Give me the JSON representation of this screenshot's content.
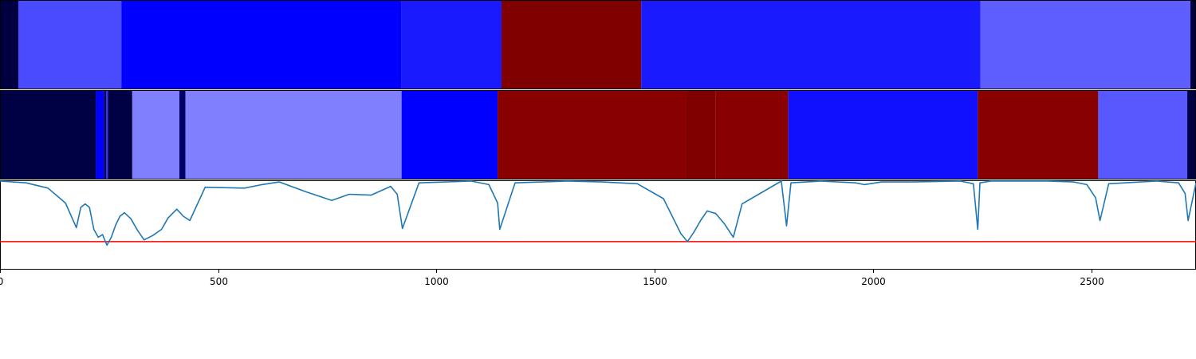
{
  "chart_data": [
    {
      "type": "heatmap",
      "name": "segmentation-band-1",
      "x_range": [
        0,
        2740
      ],
      "segments": [
        {
          "start": 0,
          "end": 42,
          "color": "#000040"
        },
        {
          "start": 42,
          "end": 278,
          "color": "#4a4aff"
        },
        {
          "start": 278,
          "end": 920,
          "color": "#0000ff"
        },
        {
          "start": 920,
          "end": 1149,
          "color": "#1a1aff"
        },
        {
          "start": 1149,
          "end": 1469,
          "color": "#800000"
        },
        {
          "start": 1469,
          "end": 2246,
          "color": "#1a1aff"
        },
        {
          "start": 2246,
          "end": 2727,
          "color": "#5e5eff"
        },
        {
          "start": 2727,
          "end": 2740,
          "color": "#000040"
        }
      ]
    },
    {
      "type": "heatmap",
      "name": "segmentation-band-2",
      "x_range": [
        0,
        2740
      ],
      "segments": [
        {
          "start": 0,
          "end": 220,
          "color": "#000044"
        },
        {
          "start": 220,
          "end": 238,
          "color": "#0000ff"
        },
        {
          "start": 238,
          "end": 243,
          "color": "#000044"
        },
        {
          "start": 243,
          "end": 247,
          "color": "#3030ff"
        },
        {
          "start": 247,
          "end": 303,
          "color": "#000044"
        },
        {
          "start": 303,
          "end": 411,
          "color": "#8080ff"
        },
        {
          "start": 411,
          "end": 425,
          "color": "#000066"
        },
        {
          "start": 425,
          "end": 920,
          "color": "#8080ff"
        },
        {
          "start": 920,
          "end": 1140,
          "color": "#0000ff"
        },
        {
          "start": 1140,
          "end": 1571,
          "color": "#880000"
        },
        {
          "start": 1571,
          "end": 1640,
          "color": "#800000"
        },
        {
          "start": 1640,
          "end": 1806,
          "color": "#880000"
        },
        {
          "start": 1806,
          "end": 2240,
          "color": "#1010ff"
        },
        {
          "start": 2240,
          "end": 2516,
          "color": "#880000"
        },
        {
          "start": 2516,
          "end": 2720,
          "color": "#5858ff"
        },
        {
          "start": 2720,
          "end": 2740,
          "color": "#000044"
        }
      ]
    },
    {
      "type": "line",
      "name": "signal",
      "xlim": [
        0,
        2740
      ],
      "ylim": [
        0,
        1
      ],
      "x_ticks": [
        0,
        500,
        1000,
        1500,
        2000,
        2500
      ],
      "x_tick_labels": [
        "0",
        "500",
        "1000",
        "1500",
        "2000",
        "2500"
      ],
      "threshold": 0.31,
      "threshold_color": "#ff0000",
      "line_color": "#1f77b4",
      "x": [
        0,
        60,
        110,
        150,
        175,
        185,
        195,
        205,
        215,
        225,
        235,
        245,
        255,
        265,
        275,
        285,
        300,
        315,
        330,
        350,
        370,
        385,
        405,
        420,
        435,
        470,
        560,
        600,
        640,
        700,
        760,
        800,
        850,
        895,
        910,
        922,
        960,
        1080,
        1120,
        1140,
        1145,
        1180,
        1300,
        1380,
        1460,
        1520,
        1560,
        1575,
        1590,
        1605,
        1620,
        1640,
        1660,
        1680,
        1700,
        1790,
        1802,
        1812,
        1880,
        1960,
        1980,
        2020,
        2080,
        2200,
        2230,
        2240,
        2245,
        2270,
        2400,
        2460,
        2490,
        2510,
        2520,
        2540,
        2650,
        2700,
        2715,
        2722,
        2740
      ],
      "y": [
        1.0,
        0.98,
        0.92,
        0.75,
        0.47,
        0.7,
        0.74,
        0.7,
        0.45,
        0.36,
        0.39,
        0.27,
        0.36,
        0.5,
        0.6,
        0.64,
        0.57,
        0.44,
        0.33,
        0.38,
        0.45,
        0.58,
        0.68,
        0.6,
        0.55,
        0.93,
        0.92,
        0.96,
        0.99,
        0.88,
        0.78,
        0.85,
        0.84,
        0.94,
        0.85,
        0.46,
        0.98,
        1.0,
        0.96,
        0.75,
        0.45,
        0.98,
        1.0,
        0.99,
        0.97,
        0.8,
        0.4,
        0.31,
        0.42,
        0.55,
        0.66,
        0.63,
        0.51,
        0.36,
        0.74,
        1.0,
        0.49,
        0.98,
        1.0,
        0.98,
        0.96,
        0.99,
        0.99,
        1.0,
        0.97,
        0.45,
        0.98,
        1.0,
        1.0,
        0.99,
        0.96,
        0.81,
        0.55,
        0.97,
        1.0,
        0.98,
        0.86,
        0.55,
        0.98
      ]
    }
  ]
}
